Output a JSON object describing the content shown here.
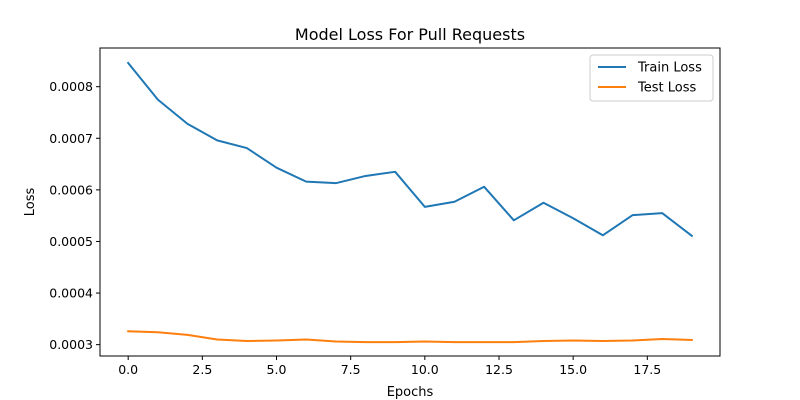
{
  "chart_data": {
    "type": "line",
    "title": "Model Loss For Pull Requests",
    "xlabel": "Epochs",
    "ylabel": "Loss",
    "x": [
      0,
      1,
      2,
      3,
      4,
      5,
      6,
      7,
      8,
      9,
      10,
      11,
      12,
      13,
      14,
      15,
      16,
      17,
      18,
      19
    ],
    "xlim": [
      -0.95,
      19.95
    ],
    "ylim": [
      0.000278,
      0.000875
    ],
    "xticks": [
      0.0,
      2.5,
      5.0,
      7.5,
      10.0,
      12.5,
      15.0,
      17.5
    ],
    "xtick_labels": [
      "0.0",
      "2.5",
      "5.0",
      "7.5",
      "10.0",
      "12.5",
      "15.0",
      "17.5"
    ],
    "yticks": [
      0.0003,
      0.0004,
      0.0005,
      0.0006,
      0.0007,
      0.0008
    ],
    "ytick_labels": [
      "0.0003",
      "0.0004",
      "0.0005",
      "0.0006",
      "0.0007",
      "0.0008"
    ],
    "grid": false,
    "legend_position": "top-right",
    "series": [
      {
        "name": "Train Loss",
        "color": "#1f77b4",
        "values": [
          0.000846,
          0.000775,
          0.000728,
          0.000696,
          0.000681,
          0.000643,
          0.000616,
          0.000613,
          0.000627,
          0.000635,
          0.000567,
          0.000577,
          0.000606,
          0.000541,
          0.000575,
          0.000545,
          0.000512,
          0.000551,
          0.000555,
          0.000511
        ]
      },
      {
        "name": "Test Loss",
        "color": "#ff7f0e",
        "values": [
          0.000326,
          0.000324,
          0.000319,
          0.00031,
          0.000307,
          0.000308,
          0.00031,
          0.000306,
          0.000305,
          0.000305,
          0.000306,
          0.000305,
          0.000305,
          0.000305,
          0.000307,
          0.000308,
          0.000307,
          0.000308,
          0.000311,
          0.000309
        ]
      }
    ]
  }
}
